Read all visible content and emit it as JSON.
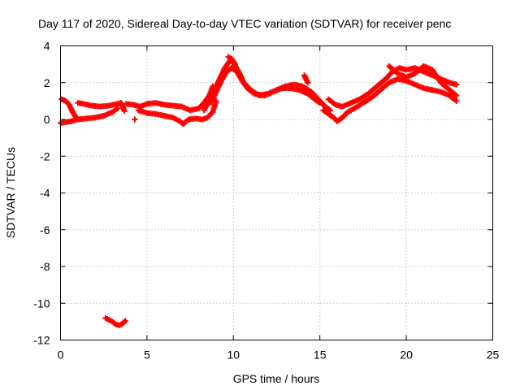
{
  "chart_data": {
    "type": "scatter",
    "title": "Day 117 of 2020, Sidereal Day-to-day VTEC variation (SDTVAR) for receiver penc",
    "xlabel": "GPS time / hours",
    "ylabel": "SDTVAR / TECUs",
    "xlim": [
      0,
      25
    ],
    "ylim": [
      -12,
      4
    ],
    "xticks": [
      0,
      5,
      10,
      15,
      20,
      25
    ],
    "yticks": [
      -12,
      -10,
      -8,
      -6,
      -4,
      -2,
      0,
      2,
      4
    ],
    "grid": true,
    "marker": "+",
    "series": [
      {
        "name": "SDTVAR",
        "color": "#ff0000",
        "segments": [
          [
            [
              0.0,
              -0.2
            ],
            [
              0.3,
              -0.15
            ],
            [
              0.6,
              -0.1
            ],
            [
              1.0,
              0.0
            ],
            [
              1.5,
              0.05
            ],
            [
              2.0,
              0.1
            ],
            [
              2.5,
              0.2
            ],
            [
              3.0,
              0.4
            ],
            [
              3.3,
              0.6
            ]
          ],
          [
            [
              0.05,
              1.1
            ],
            [
              0.3,
              1.0
            ],
            [
              0.5,
              0.8
            ],
            [
              0.7,
              0.4
            ],
            [
              0.9,
              0.1
            ]
          ],
          [
            [
              1.0,
              0.9
            ],
            [
              1.3,
              0.85
            ],
            [
              1.8,
              0.75
            ],
            [
              2.3,
              0.7
            ],
            [
              2.8,
              0.75
            ],
            [
              3.3,
              0.85
            ],
            [
              3.5,
              0.9
            ],
            [
              3.6,
              0.7
            ],
            [
              3.7,
              0.45
            ]
          ],
          [
            [
              3.8,
              0.85
            ],
            [
              4.2,
              0.8
            ],
            [
              4.6,
              0.7
            ],
            [
              5.0,
              0.85
            ],
            [
              5.5,
              0.9
            ],
            [
              6.0,
              0.8
            ],
            [
              6.5,
              0.75
            ],
            [
              7.0,
              0.7
            ],
            [
              7.5,
              0.5
            ],
            [
              8.0,
              0.6
            ],
            [
              8.3,
              0.9
            ],
            [
              8.6,
              1.3
            ],
            [
              8.8,
              1.8
            ]
          ],
          [
            [
              4.5,
              0.5
            ],
            [
              5.0,
              0.35
            ],
            [
              5.5,
              0.3
            ],
            [
              6.0,
              0.2
            ],
            [
              6.5,
              0.1
            ],
            [
              6.9,
              -0.1
            ],
            [
              7.1,
              -0.25
            ],
            [
              7.4,
              0.0
            ],
            [
              7.8,
              0.05
            ],
            [
              8.2,
              0.0
            ],
            [
              8.5,
              0.1
            ],
            [
              8.8,
              0.4
            ],
            [
              9.0,
              1.0
            ]
          ],
          [
            [
              8.3,
              0.5
            ],
            [
              8.6,
              1.0
            ],
            [
              8.9,
              1.6
            ],
            [
              9.2,
              2.2
            ],
            [
              9.5,
              2.8
            ],
            [
              9.8,
              3.2
            ],
            [
              10.0,
              3.1
            ],
            [
              10.3,
              2.6
            ],
            [
              10.6,
              2.0
            ],
            [
              11.0,
              1.6
            ],
            [
              11.5,
              1.3
            ],
            [
              12.0,
              1.4
            ],
            [
              12.5,
              1.6
            ],
            [
              13.0,
              1.8
            ],
            [
              13.5,
              1.9
            ],
            [
              14.0,
              1.8
            ],
            [
              14.5,
              1.5
            ],
            [
              15.0,
              1.0
            ],
            [
              15.3,
              0.7
            ],
            [
              15.6,
              0.5
            ]
          ],
          [
            [
              8.7,
              0.9
            ],
            [
              9.0,
              1.5
            ],
            [
              9.3,
              2.1
            ],
            [
              9.6,
              2.6
            ],
            [
              9.9,
              2.8
            ],
            [
              10.2,
              2.6
            ],
            [
              10.5,
              2.1
            ],
            [
              10.8,
              1.7
            ],
            [
              11.2,
              1.4
            ],
            [
              11.8,
              1.3
            ],
            [
              12.3,
              1.5
            ],
            [
              12.8,
              1.7
            ],
            [
              13.3,
              1.7
            ],
            [
              13.8,
              1.6
            ],
            [
              14.3,
              1.4
            ],
            [
              14.7,
              1.1
            ],
            [
              15.0,
              0.9
            ]
          ],
          [
            [
              9.7,
              3.4
            ],
            [
              9.9,
              3.3
            ],
            [
              10.1,
              3.0
            ]
          ],
          [
            [
              14.1,
              2.4
            ],
            [
              14.2,
              2.2
            ],
            [
              14.3,
              2.0
            ]
          ],
          [
            [
              15.2,
              0.5
            ],
            [
              15.5,
              0.3
            ],
            [
              15.8,
              0.1
            ],
            [
              16.0,
              -0.1
            ],
            [
              16.3,
              0.1
            ],
            [
              16.6,
              0.4
            ],
            [
              17.0,
              0.6
            ],
            [
              17.5,
              0.9
            ],
            [
              18.0,
              1.2
            ],
            [
              18.5,
              1.6
            ],
            [
              19.0,
              2.0
            ],
            [
              19.5,
              2.2
            ],
            [
              20.0,
              2.1
            ],
            [
              20.5,
              1.9
            ],
            [
              21.0,
              1.7
            ],
            [
              21.5,
              1.6
            ],
            [
              22.0,
              1.5
            ],
            [
              22.5,
              1.3
            ],
            [
              22.9,
              1.0
            ]
          ],
          [
            [
              15.5,
              1.1
            ],
            [
              15.9,
              0.8
            ],
            [
              16.3,
              0.7
            ],
            [
              16.8,
              0.9
            ],
            [
              17.3,
              1.1
            ],
            [
              17.8,
              1.4
            ],
            [
              18.3,
              1.8
            ],
            [
              18.8,
              2.2
            ],
            [
              19.2,
              2.6
            ],
            [
              19.6,
              2.8
            ],
            [
              20.0,
              2.7
            ],
            [
              20.5,
              2.8
            ],
            [
              21.0,
              2.6
            ],
            [
              21.5,
              2.4
            ],
            [
              22.0,
              2.2
            ],
            [
              22.5,
              2.0
            ],
            [
              22.9,
              1.9
            ]
          ],
          [
            [
              19.0,
              2.9
            ],
            [
              19.5,
              2.5
            ],
            [
              20.0,
              2.3
            ],
            [
              20.5,
              2.5
            ],
            [
              21.0,
              2.9
            ],
            [
              21.5,
              2.7
            ],
            [
              22.0,
              2.0
            ],
            [
              22.5,
              1.6
            ],
            [
              22.9,
              1.3
            ]
          ],
          [
            [
              4.3,
              0.0
            ]
          ],
          [
            [
              2.6,
              -10.8
            ],
            [
              2.8,
              -10.9
            ],
            [
              3.0,
              -11.0
            ],
            [
              3.2,
              -11.15
            ],
            [
              3.4,
              -11.2
            ],
            [
              3.6,
              -11.1
            ],
            [
              3.75,
              -10.95
            ]
          ]
        ]
      }
    ]
  }
}
